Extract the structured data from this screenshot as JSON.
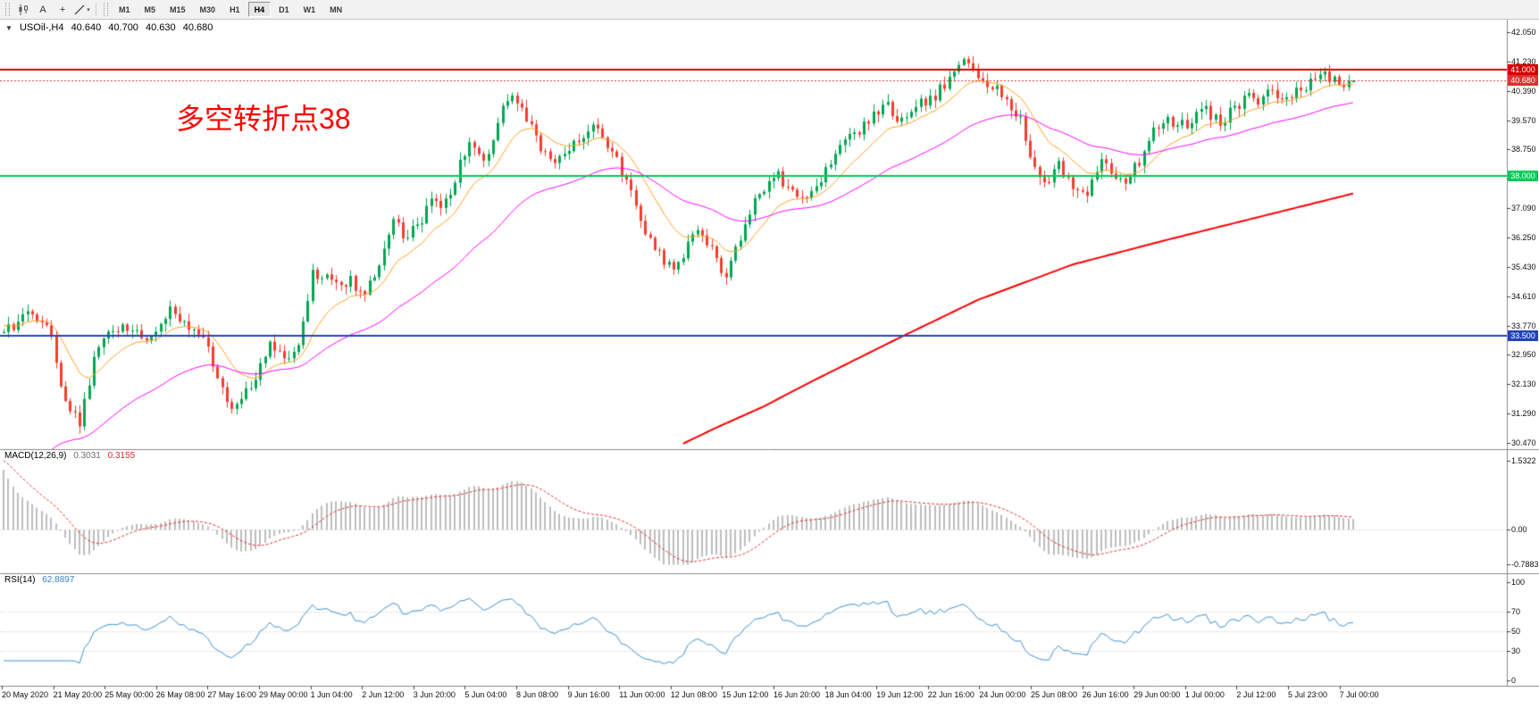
{
  "icons": {
    "dropdown": "▼",
    "caret": "▾",
    "crosshair": "+"
  },
  "toolbar": {
    "text_tool_label": "A",
    "timeframes": [
      "M1",
      "M5",
      "M15",
      "M30",
      "H1",
      "H4",
      "D1",
      "W1",
      "MN"
    ],
    "active_timeframe": "H4"
  },
  "chart": {
    "symbol_line": {
      "symbol_tf": "USOil-,H4",
      "open": "40.640",
      "high": "40.700",
      "low": "40.630",
      "close": "40.680"
    },
    "annotation": {
      "text": "多空转折点38",
      "color": "#ff0000"
    },
    "indicator_labels": {
      "macd": {
        "name": "MACD(12,26,9)",
        "main_value": "0.3031",
        "signal_value": "0.3155"
      },
      "rsi": {
        "name": "RSI(14)",
        "value": "62.8897"
      }
    }
  },
  "chart_data": {
    "type": "candlestick",
    "symbol": "USOil-",
    "timeframe": "H4",
    "last_candle": {
      "open": 40.64,
      "high": 40.7,
      "low": 40.63,
      "close": 40.68
    },
    "price_axis": {
      "min": 30.47,
      "max": 42.05,
      "ticks": [
        "42.050",
        "41.230",
        "40.390",
        "39.570",
        "38.750",
        "37.930",
        "37.090",
        "36.250",
        "35.430",
        "34.610",
        "33.770",
        "32.950",
        "32.130",
        "31.290",
        "30.470"
      ]
    },
    "h_lines": [
      {
        "value": 41.0,
        "label": "41.000",
        "color": "#d40000",
        "width": 2,
        "style": "solid",
        "name": "resistance-line-41"
      },
      {
        "value": 40.68,
        "label": "40.680",
        "color": "#e03030",
        "width": 1,
        "style": "dotted",
        "name": "bid-price-line"
      },
      {
        "value": 38.0,
        "label": "38.000",
        "color": "#00cc55",
        "width": 2,
        "style": "solid",
        "name": "support-line-38"
      },
      {
        "value": 33.5,
        "label": "33.500",
        "color": "#2244bb",
        "width": 2,
        "style": "solid",
        "name": "support-line-33-5"
      }
    ],
    "candles": {
      "count": 285,
      "up_color": "#00a651",
      "down_color": "#f43d30",
      "close_waypoints": [
        [
          0,
          33.6
        ],
        [
          6,
          34.2
        ],
        [
          10,
          33.5
        ],
        [
          13,
          31.6
        ],
        [
          16,
          31.0
        ],
        [
          19,
          32.8
        ],
        [
          22,
          33.5
        ],
        [
          26,
          33.8
        ],
        [
          31,
          33.3
        ],
        [
          35,
          34.2
        ],
        [
          38,
          33.8
        ],
        [
          43,
          33.2
        ],
        [
          46,
          31.9
        ],
        [
          49,
          31.4
        ],
        [
          53,
          32.3
        ],
        [
          56,
          33.2
        ],
        [
          59,
          32.8
        ],
        [
          62,
          33.4
        ],
        [
          65,
          35.2
        ],
        [
          68,
          35.3
        ],
        [
          70,
          34.9
        ],
        [
          73,
          35.0
        ],
        [
          76,
          34.8
        ],
        [
          79,
          35.5
        ],
        [
          82,
          36.8
        ],
        [
          84,
          36.3
        ],
        [
          87,
          36.5
        ],
        [
          90,
          37.3
        ],
        [
          93,
          37.2
        ],
        [
          96,
          38.3
        ],
        [
          98,
          38.9
        ],
        [
          101,
          38.3
        ],
        [
          104,
          39.6
        ],
        [
          107,
          40.2
        ],
        [
          110,
          39.7
        ],
        [
          113,
          38.8
        ],
        [
          115,
          38.3
        ],
        [
          118,
          38.6
        ],
        [
          121,
          39.0
        ],
        [
          124,
          39.3
        ],
        [
          127,
          38.9
        ],
        [
          129,
          38.5
        ],
        [
          132,
          37.5
        ],
        [
          135,
          36.4
        ],
        [
          138,
          35.8
        ],
        [
          141,
          35.3
        ],
        [
          144,
          36.1
        ],
        [
          146,
          36.3
        ],
        [
          149,
          35.9
        ],
        [
          152,
          35.0
        ],
        [
          155,
          36.3
        ],
        [
          158,
          37.2
        ],
        [
          160,
          37.6
        ],
        [
          163,
          38.0
        ],
        [
          166,
          37.6
        ],
        [
          169,
          37.4
        ],
        [
          172,
          37.9
        ],
        [
          174,
          38.3
        ],
        [
          177,
          38.9
        ],
        [
          180,
          39.3
        ],
        [
          183,
          39.8
        ],
        [
          186,
          40.0
        ],
        [
          188,
          39.6
        ],
        [
          191,
          39.9
        ],
        [
          194,
          40.1
        ],
        [
          197,
          40.4
        ],
        [
          200,
          40.9
        ],
        [
          202,
          41.4
        ],
        [
          205,
          40.9
        ],
        [
          208,
          40.5
        ],
        [
          211,
          40.2
        ],
        [
          214,
          39.6
        ],
        [
          217,
          38.2
        ],
        [
          219,
          37.8
        ],
        [
          222,
          38.3
        ],
        [
          225,
          37.7
        ],
        [
          228,
          37.4
        ],
        [
          231,
          38.4
        ],
        [
          233,
          38.2
        ],
        [
          236,
          37.9
        ],
        [
          239,
          38.4
        ],
        [
          242,
          39.2
        ],
        [
          245,
          39.5
        ],
        [
          247,
          39.3
        ],
        [
          250,
          39.6
        ],
        [
          253,
          39.8
        ],
        [
          256,
          39.5
        ],
        [
          259,
          39.9
        ],
        [
          262,
          40.3
        ],
        [
          264,
          40.1
        ],
        [
          267,
          40.4
        ],
        [
          270,
          40.2
        ],
        [
          273,
          40.5
        ],
        [
          276,
          40.6
        ],
        [
          278,
          40.9
        ],
        [
          281,
          40.6
        ],
        [
          284,
          40.68
        ]
      ]
    },
    "moving_averages": [
      {
        "name": "ma-fast-orange",
        "color": "#ffa022",
        "width": 1,
        "period": 13,
        "seed": 33.8
      },
      {
        "name": "ma-medium-magenta",
        "color": "#ff00ff",
        "width": 1,
        "period": 45,
        "seed": 28.0
      },
      {
        "name": "ma-slow-red",
        "color": "#ff0000",
        "width": 2,
        "waypoints": [
          [
            143,
            30.45
          ],
          [
            150,
            30.9
          ],
          [
            160,
            31.5
          ],
          [
            170,
            32.2
          ],
          [
            188,
            33.4
          ],
          [
            205,
            34.5
          ],
          [
            225,
            35.5
          ],
          [
            245,
            36.2
          ],
          [
            263,
            36.8
          ],
          [
            275,
            37.2
          ],
          [
            284,
            37.5
          ]
        ]
      }
    ],
    "macd": {
      "fast": 12,
      "slow": 26,
      "signal": 9,
      "seed_fast": 35.3,
      "seed_slow": 33.75,
      "hist_color": "#bdbdbd",
      "signal_color": "#e03030",
      "max": 1.5322,
      "min": -0.7883,
      "axis_ticks": [
        "1.5322",
        "0.00",
        "-0.7883"
      ]
    },
    "rsi": {
      "period": 14,
      "color": "#3c8fd0",
      "last_value": 62.8897,
      "levels": [
        100,
        70,
        50,
        30,
        0
      ]
    },
    "time_axis": [
      "20 May 2020",
      "21 May 20:00",
      "25 May 00:00",
      "26 May 08:00",
      "27 May 16:00",
      "29 May 00:00",
      "1 Jun 04:00",
      "2 Jun 12:00",
      "3 Jun 20:00",
      "5 Jun 04:00",
      "8 Jun 08:00",
      "9 Jun 16:00",
      "11 Jun 00:00",
      "12 Jun 08:00",
      "15 Jun 12:00",
      "16 Jun 20:00",
      "18 Jun 04:00",
      "19 Jun 12:00",
      "22 Jun 16:00",
      "24 Jun 00:00",
      "25 Jun 08:00",
      "26 Jun 16:00",
      "29 Jun 00:00",
      "1 Jul 00:00",
      "2 Jul 12:00",
      "5 Jul 23:00",
      "7 Jul 00:00"
    ]
  }
}
